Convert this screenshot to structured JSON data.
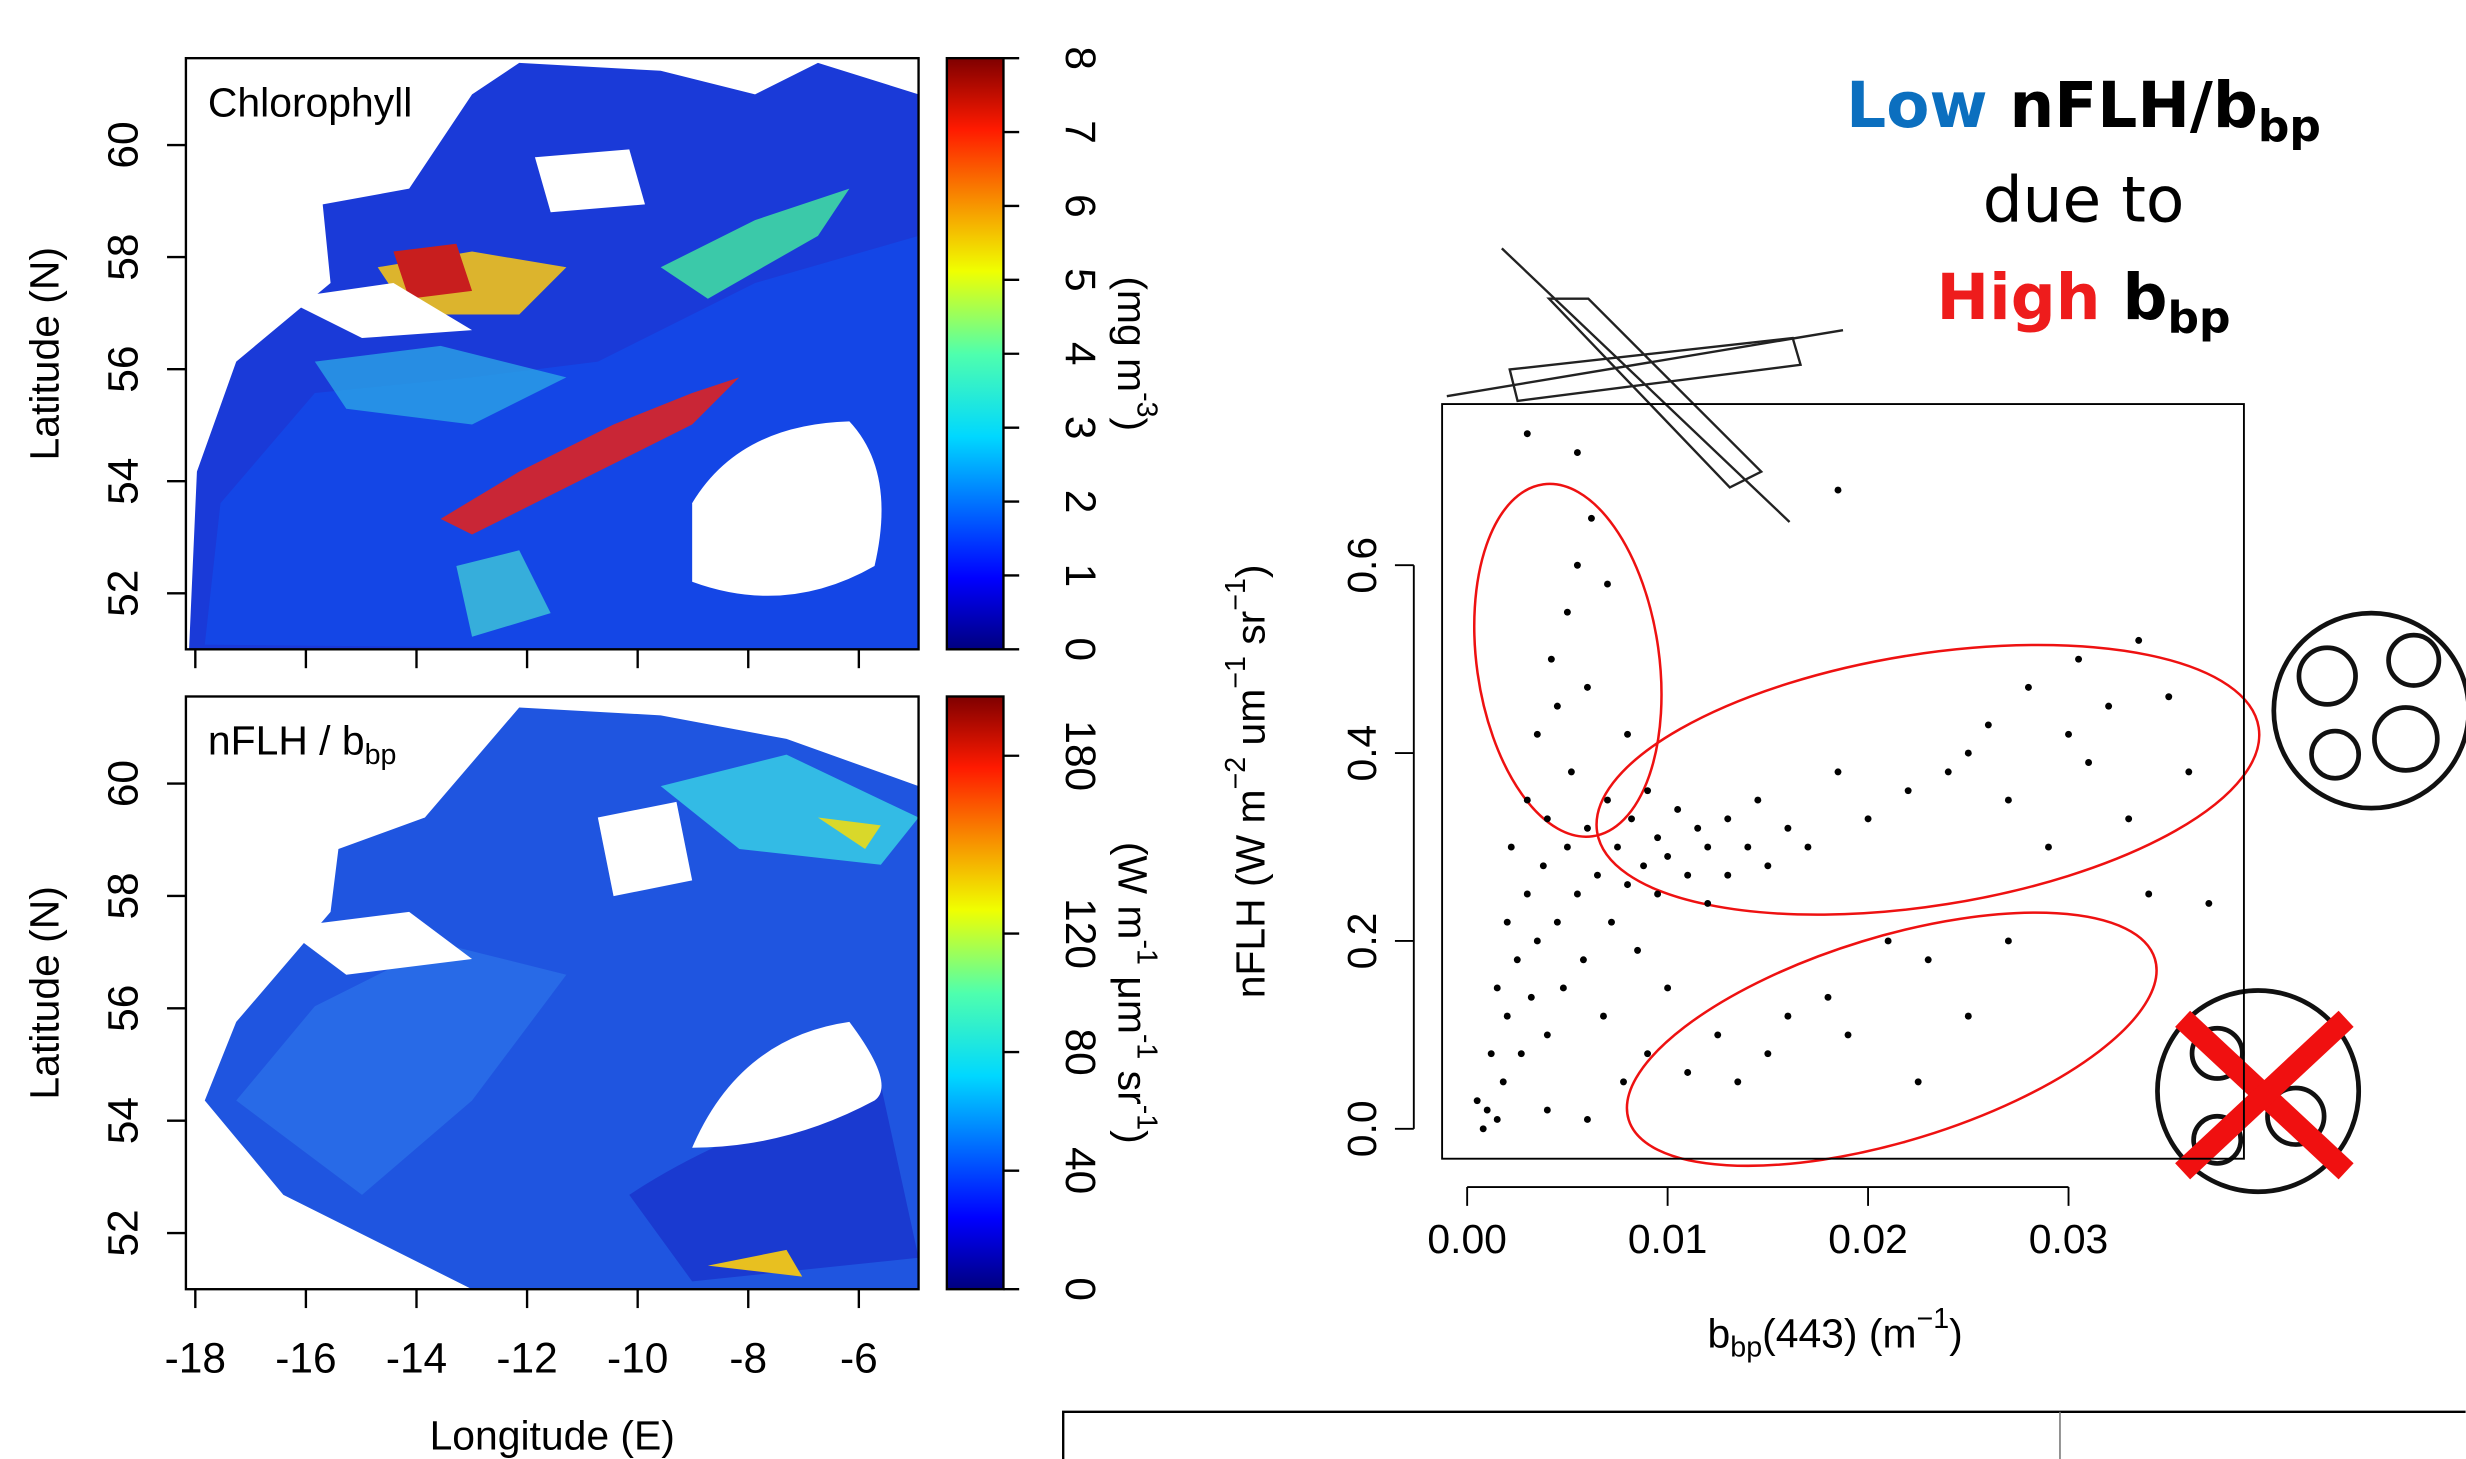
{
  "chart_data": [
    {
      "type": "heatmap",
      "title": [
        {
          "text": "Chlorophyll"
        }
      ],
      "ylabel": "Latitude (N)",
      "xlim": [
        -18.17,
        -4.92
      ],
      "ylim": [
        51.0,
        61.55
      ],
      "xticks": [
        -18,
        -16,
        -14,
        -12,
        -10,
        -8,
        -6
      ],
      "yticks": [
        52,
        54,
        56,
        58,
        60
      ],
      "colorbar": {
        "label": [
          {
            "text": "(mg m"
          },
          {
            "text": "-3",
            "sup": true
          },
          {
            "text": ")"
          }
        ],
        "lim": [
          0,
          8
        ],
        "ticks": [
          0,
          1,
          2,
          3,
          4,
          5,
          6,
          7,
          8
        ]
      }
    },
    {
      "type": "heatmap",
      "title": [
        {
          "text": "nFLH / b"
        },
        {
          "text": "bp",
          "sub": true
        }
      ],
      "ylabel": "Latitude (N)",
      "xlabel": "Longitude (E)",
      "xlim": [
        -18.17,
        -4.92
      ],
      "ylim": [
        51.0,
        61.55
      ],
      "xticks": [
        -18,
        -16,
        -14,
        -12,
        -10,
        -8,
        -6
      ],
      "yticks": [
        52,
        54,
        56,
        58,
        60
      ],
      "colorbar": {
        "label": [
          {
            "text": "(W m"
          },
          {
            "text": "-1",
            "sup": true
          },
          {
            "text": " μm"
          },
          {
            "text": "-1",
            "sup": true
          },
          {
            "text": " sr"
          },
          {
            "text": "-1",
            "sup": true
          },
          {
            "text": ")"
          }
        ],
        "lim": [
          0,
          200
        ],
        "ticks": [
          0,
          40,
          80,
          120,
          180
        ]
      }
    },
    {
      "type": "scatter",
      "color": "#000000",
      "xlabel": [
        {
          "text": "b"
        },
        {
          "text": "bp",
          "sub": true
        },
        {
          "text": "(443) (m"
        },
        {
          "text": "−1",
          "sup": true
        },
        {
          "text": ")"
        }
      ],
      "ylabel": [
        {
          "text": "nFLH (W m"
        },
        {
          "text": "−2",
          "sup": true
        },
        {
          "text": " um"
        },
        {
          "text": "−1",
          "sup": true
        },
        {
          "text": " sr"
        },
        {
          "text": "−1",
          "sup": true
        },
        {
          "text": ")"
        }
      ],
      "xlim": [
        -0.00125,
        0.03875
      ],
      "ylim": [
        -0.0318,
        0.7716
      ],
      "xticks": [
        {
          "value": 0,
          "label": "0.00"
        },
        {
          "value": 0.01,
          "label": "0.01"
        },
        {
          "value": 0.02,
          "label": "0.02"
        },
        {
          "value": 0.03,
          "label": "0.03"
        }
      ],
      "yticks": [
        {
          "value": 0,
          "label": "0.0"
        },
        {
          "value": 0.2,
          "label": "0.2"
        },
        {
          "value": 0.4,
          "label": "0.4"
        },
        {
          "value": 0.6,
          "label": "0.6"
        }
      ],
      "x": [
        0.001,
        0.0012,
        0.0015,
        0.0018,
        0.002,
        0.002,
        0.0022,
        0.0025,
        0.0027,
        0.003,
        0.003,
        0.0032,
        0.0035,
        0.0035,
        0.0038,
        0.004,
        0.004,
        0.0042,
        0.0045,
        0.0045,
        0.0048,
        0.005,
        0.005,
        0.0052,
        0.0055,
        0.0055,
        0.0058,
        0.006,
        0.006,
        0.0062,
        0.0065,
        0.0068,
        0.007,
        0.007,
        0.0072,
        0.0075,
        0.0078,
        0.008,
        0.008,
        0.0082,
        0.0085,
        0.0088,
        0.009,
        0.009,
        0.0095,
        0.0095,
        0.01,
        0.01,
        0.0105,
        0.011,
        0.011,
        0.0115,
        0.012,
        0.012,
        0.0125,
        0.013,
        0.013,
        0.0135,
        0.014,
        0.0145,
        0.015,
        0.015,
        0.016,
        0.016,
        0.017,
        0.018,
        0.0185,
        0.019,
        0.02,
        0.021,
        0.022,
        0.0225,
        0.023,
        0.024,
        0.025,
        0.025,
        0.026,
        0.027,
        0.027,
        0.028,
        0.029,
        0.03,
        0.0305,
        0.031,
        0.032,
        0.033,
        0.0335,
        0.034,
        0.035,
        0.036,
        0.037,
        0.0185,
        0.003,
        0.0055,
        0.0005,
        0.0008,
        0.0015,
        0.004,
        0.006
      ],
      "y": [
        0.02,
        0.08,
        0.15,
        0.05,
        0.22,
        0.12,
        0.3,
        0.18,
        0.08,
        0.25,
        0.35,
        0.14,
        0.2,
        0.42,
        0.28,
        0.1,
        0.33,
        0.5,
        0.22,
        0.45,
        0.15,
        0.3,
        0.55,
        0.38,
        0.25,
        0.6,
        0.18,
        0.32,
        0.47,
        0.65,
        0.27,
        0.12,
        0.35,
        0.58,
        0.22,
        0.3,
        0.05,
        0.26,
        0.42,
        0.33,
        0.19,
        0.28,
        0.36,
        0.08,
        0.25,
        0.31,
        0.29,
        0.15,
        0.34,
        0.27,
        0.06,
        0.32,
        0.24,
        0.3,
        0.1,
        0.33,
        0.27,
        0.05,
        0.3,
        0.35,
        0.08,
        0.28,
        0.12,
        0.32,
        0.3,
        0.14,
        0.38,
        0.1,
        0.33,
        0.2,
        0.36,
        0.05,
        0.18,
        0.38,
        0.4,
        0.12,
        0.43,
        0.2,
        0.35,
        0.47,
        0.3,
        0.42,
        0.5,
        0.39,
        0.45,
        0.33,
        0.52,
        0.25,
        0.46,
        0.38,
        0.24,
        0.68,
        0.74,
        0.72,
        0.03,
        0.0,
        0.01,
        0.02,
        0.01
      ],
      "annotation": [
        [
          {
            "text": "Low",
            "color": "#0b6fbf"
          },
          {
            "text": "nFLH/b"
          },
          {
            "text": "bp",
            "sub": true
          }
        ],
        [
          {
            "text": "due to",
            "bold": false
          }
        ],
        [
          {
            "text": "High",
            "color": "#ee1c1c"
          },
          {
            "text": "b"
          },
          {
            "text": "bp",
            "sub": true
          }
        ]
      ]
    }
  ]
}
